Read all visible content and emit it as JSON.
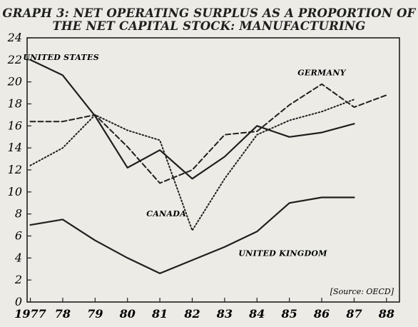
{
  "chart_data": {
    "type": "line",
    "title": "GRAPH 3: NET OPERATING SURPLUS AS A PROPORTION OF",
    "subtitle": "THE NET CAPITAL STOCK: MANUFACTURING",
    "source": "[Source: OECD]",
    "x_tick_labels": [
      "1977",
      "78",
      "79",
      "80",
      "81",
      "82",
      "83",
      "84",
      "85",
      "86",
      "87",
      "88"
    ],
    "x": [
      1977,
      1978,
      1979,
      1980,
      1981,
      1982,
      1983,
      1984,
      1985,
      1986,
      1987,
      1988
    ],
    "xlim": [
      1976.9,
      1988.4
    ],
    "ylim": [
      0,
      24
    ],
    "y_ticks": [
      0,
      2,
      4,
      6,
      8,
      10,
      12,
      14,
      16,
      18,
      20,
      22,
      24
    ],
    "grid": false,
    "series": [
      {
        "name": "UNITED STATES",
        "style": "solid",
        "values": [
          22.0,
          20.6,
          16.9,
          12.2,
          13.8,
          11.2,
          13.2,
          16.0,
          15.0,
          15.4,
          16.2,
          null
        ]
      },
      {
        "name": "UNITED KINGDOM",
        "style": "solid",
        "values": [
          7.0,
          7.5,
          5.6,
          4.0,
          2.6,
          3.8,
          5.0,
          6.4,
          9.0,
          9.5,
          9.5,
          null
        ]
      },
      {
        "name": "CANADA",
        "style": "dotted",
        "values": [
          12.4,
          14.0,
          17.0,
          15.6,
          14.7,
          6.5,
          11.2,
          15.2,
          16.5,
          17.3,
          18.4,
          null
        ]
      },
      {
        "name": "GERMANY",
        "style": "dashed",
        "values": [
          16.4,
          16.4,
          17.0,
          14.1,
          10.8,
          12.0,
          15.2,
          15.5,
          17.9,
          19.8,
          17.7,
          18.8
        ]
      }
    ]
  }
}
